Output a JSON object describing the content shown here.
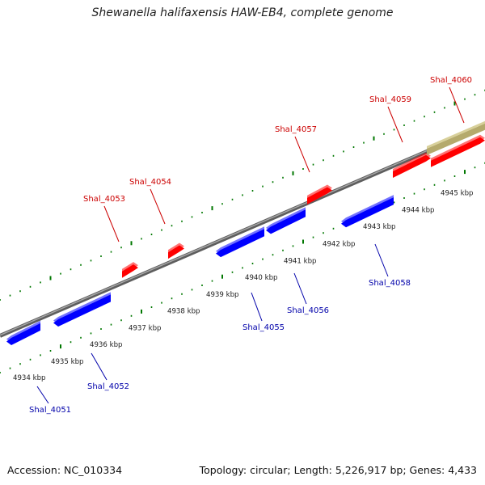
{
  "title": "Shewanella halifaxensis HAW-EB4, complete genome",
  "footer": {
    "accession": "Accession: NC_010334",
    "summary": "Topology: circular; Length: 5,226,917 bp; Genes: 4,433"
  },
  "colors": {
    "backbone": "#888888",
    "forward_gene": "#ff0000",
    "reverse_gene": "#0000ff",
    "partial_feature": "#b5aa6c",
    "tick": "#007700",
    "forward_label": "#cc0000",
    "reverse_label": "#0000aa"
  },
  "kbp_ticks": [
    {
      "kbp": 4934,
      "label": "4934 kbp"
    },
    {
      "kbp": 4935,
      "label": "4935 kbp"
    },
    {
      "kbp": 4936,
      "label": "4936 kbp"
    },
    {
      "kbp": 4937,
      "label": "4937 kbp"
    },
    {
      "kbp": 4938,
      "label": "4938 kbp"
    },
    {
      "kbp": 4939,
      "label": "4939 kbp"
    },
    {
      "kbp": 4940,
      "label": "4940 kbp"
    },
    {
      "kbp": 4941,
      "label": "4941 kbp"
    },
    {
      "kbp": 4942,
      "label": "4942 kbp"
    },
    {
      "kbp": 4943,
      "label": "4943 kbp"
    },
    {
      "kbp": 4944,
      "label": "4944 kbp"
    },
    {
      "kbp": 4945,
      "label": "4945 kbp"
    }
  ],
  "forward_genes": [
    {
      "name": "Shal_4053"
    },
    {
      "name": "Shal_4054"
    },
    {
      "name": "Shal_4057"
    },
    {
      "name": "Shal_4059"
    },
    {
      "name": "Shal_4060"
    }
  ],
  "reverse_genes": [
    {
      "name": "Shal_4051"
    },
    {
      "name": "Shal_4052"
    },
    {
      "name": "Shal_4055"
    },
    {
      "name": "Shal_4056"
    },
    {
      "name": "Shal_4058"
    }
  ]
}
